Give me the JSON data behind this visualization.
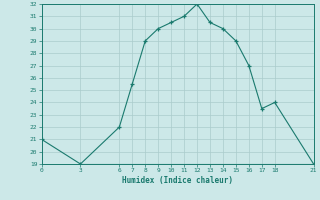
{
  "x": [
    0,
    3,
    6,
    7,
    8,
    9,
    10,
    11,
    12,
    13,
    14,
    15,
    16,
    17,
    18,
    21
  ],
  "y": [
    21,
    19,
    22,
    25.5,
    29,
    30,
    30.5,
    31,
    32,
    30.5,
    30,
    29,
    27,
    23.5,
    24,
    19
  ],
  "baseline_y": 19,
  "title": "",
  "xlabel": "Humidex (Indice chaleur)",
  "xlim": [
    0,
    21
  ],
  "ylim": [
    19,
    32
  ],
  "yticks": [
    19,
    20,
    21,
    22,
    23,
    24,
    25,
    26,
    27,
    28,
    29,
    30,
    31,
    32
  ],
  "xticks": [
    0,
    3,
    6,
    7,
    8,
    9,
    10,
    11,
    12,
    13,
    14,
    15,
    16,
    17,
    18,
    21
  ],
  "line_color": "#1a7a6e",
  "bg_color": "#cce8e8",
  "grid_color": "#aacccc"
}
